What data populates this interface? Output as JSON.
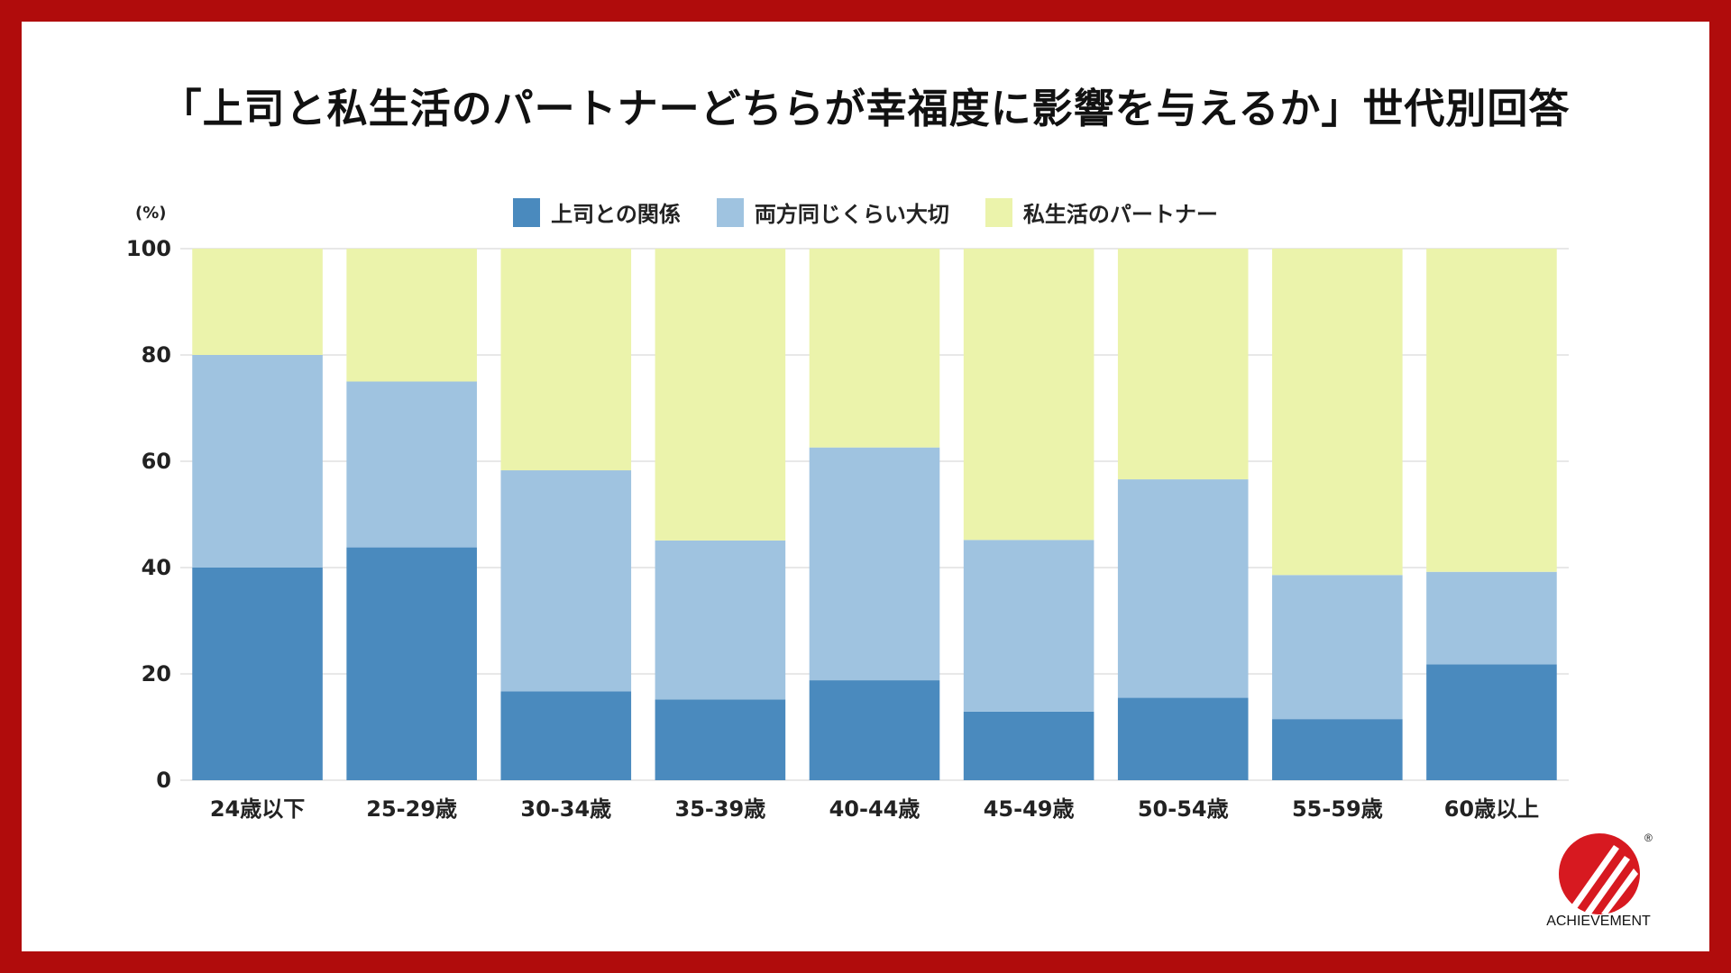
{
  "title": "「上司と私生活のパートナーどちらが幸福度に影響を与えるか」世代別回答",
  "unit_label": "(%)",
  "logo": {
    "text": "ACHIEVEMENT",
    "registered": "®"
  },
  "colors": {
    "border": "#b00c0c",
    "boss": "#4a8abe",
    "both": "#9fc3e0",
    "partner": "#ebf3ab",
    "grid": "#d0d0d0"
  },
  "chart_data": {
    "type": "bar",
    "stacked": true,
    "title": "「上司と私生活のパートナーどちらが幸福度に影響を与えるか」世代別回答",
    "ylabel": "(%)",
    "ylim": [
      0,
      100
    ],
    "yticks": [
      0,
      20,
      40,
      60,
      80,
      100
    ],
    "grid": true,
    "legend_position": "top",
    "categories": [
      "24歳以下",
      "25-29歳",
      "30-34歳",
      "35-39歳",
      "40-44歳",
      "45-49歳",
      "50-54歳",
      "55-59歳",
      "60歳以上"
    ],
    "series": [
      {
        "name": "上司との関係",
        "color": "#4a8abe",
        "values": [
          40.0,
          43.8,
          16.7,
          15.2,
          18.8,
          12.9,
          15.5,
          11.5,
          21.8
        ]
      },
      {
        "name": "両方同じくらい大切",
        "color": "#9fc3e0",
        "values": [
          40.0,
          31.2,
          41.6,
          29.9,
          43.8,
          32.3,
          41.1,
          27.1,
          17.4
        ]
      },
      {
        "name": "私生活のパートナー",
        "color": "#ebf3ab",
        "values": [
          20.0,
          25.0,
          41.7,
          54.9,
          37.4,
          54.8,
          43.4,
          61.4,
          60.8
        ]
      }
    ]
  }
}
